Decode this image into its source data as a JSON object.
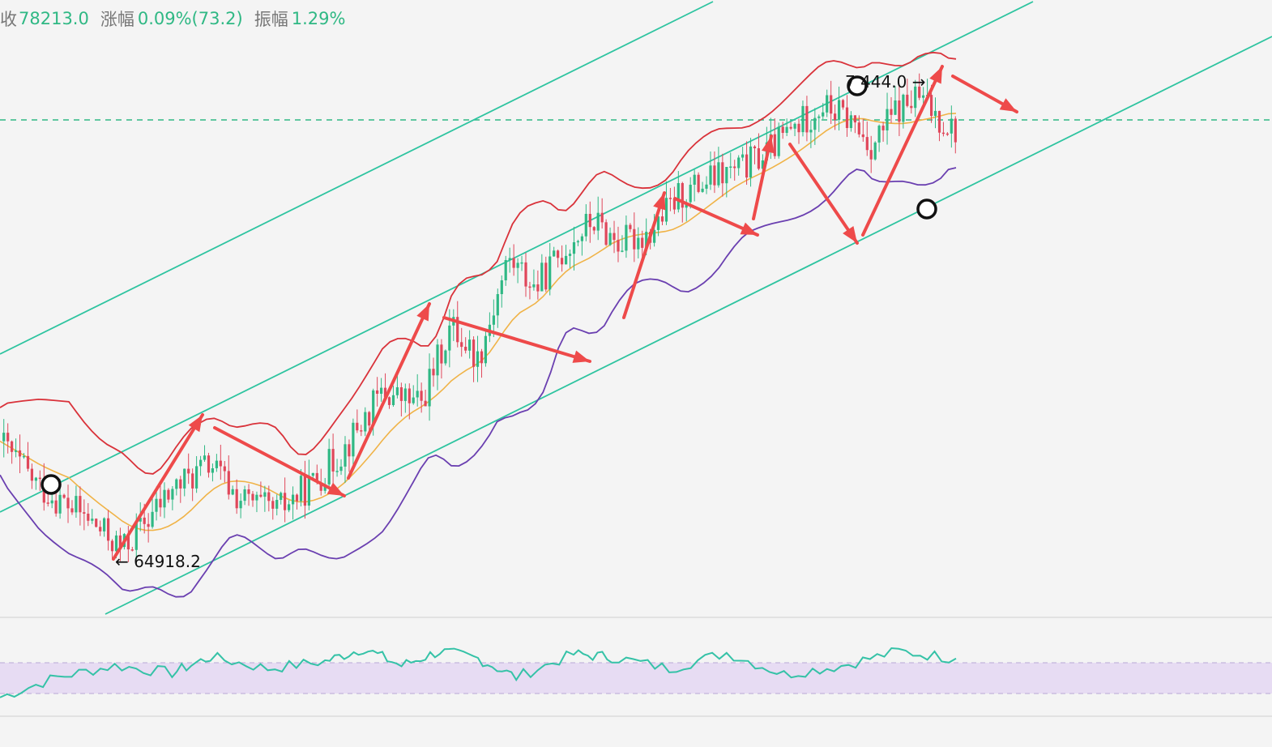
{
  "header": {
    "close_label_fragment": "收",
    "close_value": "78213.0",
    "change_label": "涨幅",
    "change_value": "0.09%(73.2)",
    "amplitude_label": "振幅",
    "amplitude_value": "1.29%"
  },
  "colors": {
    "background": "#f4f4f4",
    "channel": "#2ec4a0",
    "bollinger_upper": "#d9323a",
    "bollinger_mid": "#f0b347",
    "bollinger_lower": "#6a3fb0",
    "candle_up": "#2fb884",
    "candle_down": "#e0475a",
    "arrow": "#ee4a4a",
    "rsi_line": "#35c2a7",
    "rsi_band": "#e7dcf3",
    "dashed_line": "#2fb884"
  },
  "chart_data": {
    "type": "candlestick",
    "y_unit": "price",
    "annotations": {
      "low_label": "← 64918.2",
      "high_label": "7 444.0 →",
      "low_value": 64918.2,
      "high_value_partial": "444.0"
    },
    "indicators": [
      "bollinger-upper",
      "bollinger-middle",
      "bollinger-lower",
      "rsi"
    ],
    "trend_channel": "ascending",
    "price_path": [
      {
        "x": 0,
        "y": 68000
      },
      {
        "x": 10,
        "y": 66800
      },
      {
        "x": 22,
        "y": 66000
      },
      {
        "x": 32,
        "y": 65100
      },
      {
        "x": 45,
        "y": 66700
      },
      {
        "x": 55,
        "y": 67400
      },
      {
        "x": 62,
        "y": 66500
      },
      {
        "x": 72,
        "y": 66100
      },
      {
        "x": 82,
        "y": 66900
      },
      {
        "x": 90,
        "y": 67800
      },
      {
        "x": 100,
        "y": 69300
      },
      {
        "x": 110,
        "y": 69000
      },
      {
        "x": 118,
        "y": 71100
      },
      {
        "x": 125,
        "y": 70200
      },
      {
        "x": 133,
        "y": 72900
      },
      {
        "x": 140,
        "y": 72100
      },
      {
        "x": 148,
        "y": 73200
      },
      {
        "x": 155,
        "y": 73900
      },
      {
        "x": 162,
        "y": 73300
      },
      {
        "x": 170,
        "y": 73600
      },
      {
        "x": 178,
        "y": 74600
      },
      {
        "x": 186,
        "y": 75000
      },
      {
        "x": 194,
        "y": 75300
      },
      {
        "x": 200,
        "y": 75700
      },
      {
        "x": 208,
        "y": 76400
      },
      {
        "x": 215,
        "y": 77000
      },
      {
        "x": 222,
        "y": 76600
      },
      {
        "x": 228,
        "y": 75900
      },
      {
        "x": 234,
        "y": 76800
      },
      {
        "x": 240,
        "y": 77200
      },
      {
        "x": 245,
        "y": 76700
      },
      {
        "x": 250,
        "y": 76300
      }
    ],
    "rsi_path": [
      {
        "x": 0,
        "y": 38
      },
      {
        "x": 15,
        "y": 52
      },
      {
        "x": 30,
        "y": 60
      },
      {
        "x": 45,
        "y": 55
      },
      {
        "x": 55,
        "y": 66
      },
      {
        "x": 70,
        "y": 58
      },
      {
        "x": 85,
        "y": 63
      },
      {
        "x": 95,
        "y": 72
      },
      {
        "x": 105,
        "y": 60
      },
      {
        "x": 115,
        "y": 70
      },
      {
        "x": 125,
        "y": 65
      },
      {
        "x": 135,
        "y": 52
      },
      {
        "x": 150,
        "y": 68
      },
      {
        "x": 160,
        "y": 66
      },
      {
        "x": 175,
        "y": 58
      },
      {
        "x": 190,
        "y": 69
      },
      {
        "x": 205,
        "y": 54
      },
      {
        "x": 220,
        "y": 60
      },
      {
        "x": 235,
        "y": 70
      },
      {
        "x": 250,
        "y": 65
      }
    ]
  }
}
